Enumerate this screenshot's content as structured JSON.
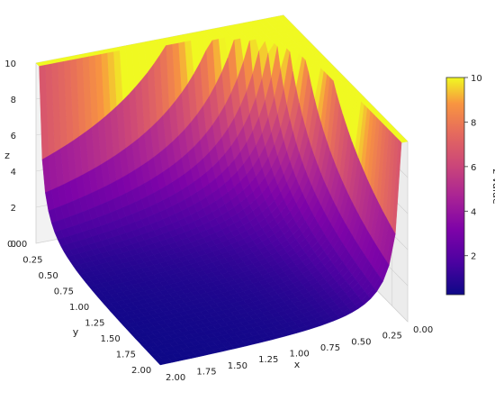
{
  "chart_data": {
    "type": "surface3d",
    "function": "z = min(10, 1/(x*y))",
    "xlabel": "x",
    "ylabel": "y",
    "zlabel": "z",
    "xlim": [
      0,
      2
    ],
    "ylim": [
      0,
      2
    ],
    "zlim": [
      0,
      10
    ],
    "x_ticks": [
      "0.00",
      "0.25",
      "0.50",
      "0.75",
      "1.00",
      "1.25",
      "1.50",
      "1.75",
      "2.00"
    ],
    "y_ticks": [
      "0.00",
      "0.25",
      "0.50",
      "0.75",
      "1.00",
      "1.25",
      "1.50",
      "1.75",
      "2.00"
    ],
    "z_ticks": [
      "0",
      "2",
      "4",
      "6",
      "8",
      "10"
    ],
    "colormap": "plasma",
    "grid": true,
    "colorbar": {
      "label": "z value",
      "range": [
        0.25,
        10
      ],
      "ticks": [
        "2",
        "4",
        "6",
        "8",
        "10"
      ],
      "placement": "right"
    }
  }
}
